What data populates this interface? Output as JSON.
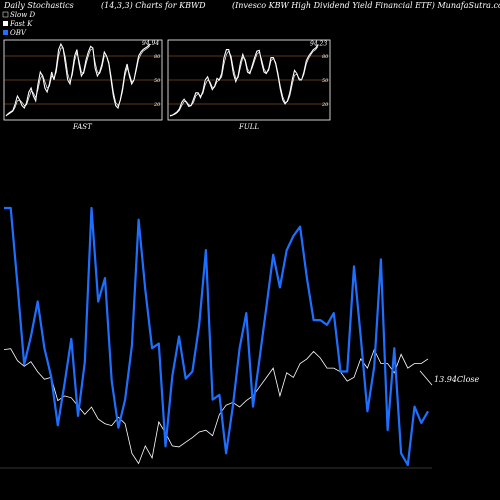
{
  "header": {
    "left": "Daily Stochastics",
    "center": "(14,3,3) Charts for KBWD",
    "right": "(Invesco  KBW High Dividend Yield Financial ETF) MunafaSutra.com"
  },
  "legend": [
    {
      "label": "Slow  D",
      "color": "#000000"
    },
    {
      "label": "Fast K",
      "color": "#ffffff"
    },
    {
      "label": "OBV",
      "color": "#1f6fff"
    }
  ],
  "colors": {
    "background": "#000000",
    "obv": "#1f6fff",
    "price": "#ffffff",
    "level_line": "#b87333",
    "stoch": "#ffffff"
  },
  "chart_data": [
    {
      "type": "line",
      "panel": "FAST",
      "title": "FAST",
      "ylim": [
        0,
        100
      ],
      "levels": [
        20,
        50,
        80
      ],
      "level_labels": [
        "20",
        "50",
        "80"
      ],
      "last_value_label": "94.94",
      "series": [
        {
          "name": "Fast K",
          "values": [
            5,
            8,
            10,
            12,
            20,
            30,
            25,
            18,
            15,
            22,
            35,
            40,
            30,
            24,
            45,
            60,
            55,
            40,
            35,
            45,
            60,
            50,
            65,
            88,
            95,
            90,
            70,
            50,
            45,
            60,
            80,
            88,
            70,
            55,
            60,
            75,
            85,
            92,
            90,
            65,
            55,
            60,
            70,
            85,
            80,
            70,
            50,
            30,
            18,
            15,
            25,
            40,
            60,
            70,
            55,
            45,
            50,
            65,
            80,
            85,
            88,
            90,
            92,
            94.94
          ]
        },
        {
          "name": "Slow D",
          "values": [
            6,
            7,
            9,
            11,
            16,
            24,
            25,
            22,
            18,
            19,
            28,
            36,
            34,
            28,
            38,
            52,
            56,
            48,
            40,
            42,
            55,
            52,
            60,
            80,
            90,
            90,
            78,
            58,
            48,
            56,
            74,
            84,
            74,
            60,
            58,
            70,
            80,
            88,
            89,
            72,
            60,
            58,
            66,
            80,
            80,
            72,
            55,
            35,
            22,
            18,
            24,
            36,
            55,
            65,
            58,
            48,
            50,
            62,
            76,
            82,
            86,
            88,
            90,
            93
          ]
        }
      ]
    },
    {
      "type": "line",
      "panel": "FULL",
      "title": "FULL",
      "ylim": [
        0,
        100
      ],
      "levels": [
        20,
        50,
        80
      ],
      "level_labels": [
        "20",
        "50",
        "80"
      ],
      "last_value_label": "94.23",
      "series": [
        {
          "name": "Fast K",
          "values": [
            5,
            6,
            8,
            10,
            14,
            22,
            26,
            22,
            17,
            18,
            26,
            34,
            34,
            28,
            36,
            50,
            54,
            46,
            38,
            42,
            52,
            50,
            58,
            78,
            88,
            88,
            76,
            58,
            48,
            55,
            72,
            82,
            74,
            60,
            58,
            68,
            78,
            86,
            87,
            72,
            60,
            58,
            64,
            78,
            78,
            70,
            55,
            38,
            25,
            20,
            24,
            34,
            50,
            62,
            58,
            50,
            50,
            60,
            74,
            80,
            84,
            88,
            90,
            94.23
          ]
        },
        {
          "name": "Slow D",
          "values": [
            6,
            6,
            7,
            9,
            12,
            18,
            23,
            23,
            19,
            18,
            22,
            30,
            33,
            30,
            33,
            44,
            50,
            48,
            41,
            41,
            48,
            50,
            54,
            70,
            82,
            86,
            80,
            64,
            52,
            53,
            66,
            78,
            76,
            64,
            59,
            65,
            74,
            82,
            85,
            76,
            64,
            59,
            62,
            74,
            77,
            72,
            58,
            42,
            29,
            22,
            23,
            30,
            44,
            56,
            57,
            52,
            50,
            57,
            70,
            77,
            82,
            86,
            88,
            92
          ]
        }
      ]
    },
    {
      "type": "line",
      "panel": "main",
      "last_price_label": "13.94",
      "last_price_suffix": "Close",
      "series": [
        {
          "name": "OBV",
          "values": [
            100,
            100,
            67,
            33,
            45,
            60,
            40,
            28,
            7,
            25,
            44,
            11,
            34,
            100,
            60,
            70,
            26,
            6,
            18,
            41,
            95,
            65,
            40,
            42,
            -2,
            28,
            45,
            27,
            30,
            50,
            82,
            18,
            20,
            -5,
            15,
            40,
            55,
            15,
            36,
            58,
            80,
            66,
            82,
            88,
            92,
            70,
            52,
            52,
            50,
            55,
            30,
            30,
            75,
            45,
            13,
            32,
            78,
            5,
            40,
            -5,
            -10,
            15,
            8,
            13
          ]
        },
        {
          "name": "Close",
          "values": [
            13.95,
            13.951,
            13.938,
            13.932,
            13.937,
            13.926,
            13.918,
            13.92,
            13.895,
            13.9,
            13.898,
            13.889,
            13.88,
            13.888,
            13.875,
            13.87,
            13.868,
            13.877,
            13.87,
            13.838,
            13.827,
            13.846,
            13.833,
            13.872,
            13.86,
            13.846,
            13.845,
            13.85,
            13.855,
            13.861,
            13.863,
            13.857,
            13.88,
            13.89,
            13.893,
            13.888,
            13.895,
            13.9,
            13.91,
            13.92,
            13.93,
            13.9,
            13.925,
            13.92,
            13.935,
            13.94,
            13.948,
            13.941,
            13.93,
            13.93,
            13.926,
            13.916,
            13.92,
            13.94,
            13.93,
            13.95,
            13.935,
            13.935,
            13.925,
            13.945,
            13.93,
            13.935,
            13.935,
            13.94
          ]
        }
      ]
    }
  ]
}
